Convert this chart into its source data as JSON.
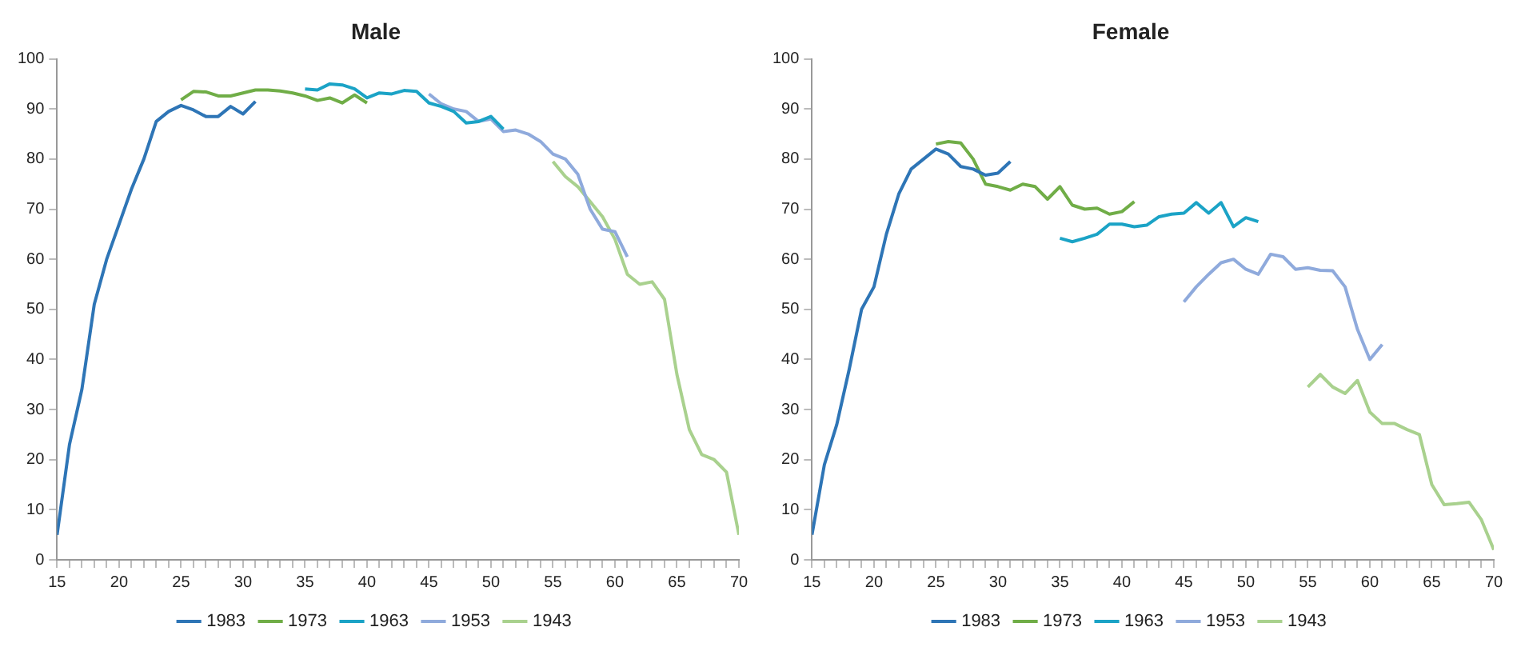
{
  "chart_data": [
    {
      "type": "line",
      "title": "Male",
      "xlim": [
        15,
        70
      ],
      "ylim": [
        0,
        100
      ],
      "xticks": [
        15,
        {
          "value": 16,
          "label": null
        },
        {
          "value": 17,
          "label": null
        },
        {
          "value": 18,
          "label": null
        },
        {
          "value": 19,
          "label": null
        },
        20,
        {
          "value": 21,
          "label": null
        },
        {
          "value": 22,
          "label": null
        },
        {
          "value": 23,
          "label": null
        },
        {
          "value": 24,
          "label": null
        },
        25,
        {
          "value": 26,
          "label": null
        },
        {
          "value": 27,
          "label": null
        },
        {
          "value": 28,
          "label": null
        },
        {
          "value": 29,
          "label": null
        },
        30,
        {
          "value": 31,
          "label": null
        },
        {
          "value": 32,
          "label": null
        },
        {
          "value": 33,
          "label": null
        },
        {
          "value": 34,
          "label": null
        },
        35,
        {
          "value": 36,
          "label": null
        },
        {
          "value": 37,
          "label": null
        },
        {
          "value": 38,
          "label": null
        },
        {
          "value": 39,
          "label": null
        },
        40,
        {
          "value": 41,
          "label": null
        },
        {
          "value": 42,
          "label": null
        },
        {
          "value": 43,
          "label": null
        },
        {
          "value": 44,
          "label": null
        },
        45,
        {
          "value": 46,
          "label": null
        },
        {
          "value": 47,
          "label": null
        },
        {
          "value": 48,
          "label": null
        },
        {
          "value": 49,
          "label": null
        },
        50,
        {
          "value": 51,
          "label": null
        },
        {
          "value": 52,
          "label": null
        },
        {
          "value": 53,
          "label": null
        },
        {
          "value": 54,
          "label": null
        },
        55,
        {
          "value": 56,
          "label": null
        },
        {
          "value": 57,
          "label": null
        },
        {
          "value": 58,
          "label": null
        },
        {
          "value": 59,
          "label": null
        },
        60,
        {
          "value": 61,
          "label": null
        },
        {
          "value": 62,
          "label": null
        },
        {
          "value": 63,
          "label": null
        },
        {
          "value": 64,
          "label": null
        },
        65,
        {
          "value": 66,
          "label": null
        },
        {
          "value": 67,
          "label": null
        },
        {
          "value": 68,
          "label": null
        },
        {
          "value": 69,
          "label": null
        },
        70
      ],
      "yticks": [
        0,
        10,
        20,
        30,
        40,
        50,
        60,
        70,
        80,
        90,
        100
      ],
      "grid": false,
      "legend": "bottom",
      "marker": "none",
      "line_style": "solid",
      "series": [
        {
          "name": "1983",
          "color": "#2e75b6",
          "x": [
            15,
            16,
            17,
            18,
            19,
            20,
            21,
            22,
            23,
            24,
            25,
            26,
            27,
            28,
            29,
            30,
            31
          ],
          "values": [
            5,
            23,
            34,
            51,
            60,
            67,
            74,
            80,
            87.5,
            89.5,
            90.7,
            89.8,
            88.5,
            88.5,
            90.5,
            89,
            91.5
          ]
        },
        {
          "name": "1973",
          "color": "#70ad47",
          "x": [
            25,
            26,
            27,
            28,
            29,
            30,
            31,
            32,
            33,
            34,
            35,
            36,
            37,
            38,
            39,
            40
          ],
          "values": [
            91.8,
            93.5,
            93.4,
            92.6,
            92.6,
            93.2,
            93.8,
            93.8,
            93.6,
            93.2,
            92.6,
            91.7,
            92.2,
            91.2,
            92.8,
            91.2
          ]
        },
        {
          "name": "1963",
          "color": "#1ba3c6",
          "x": [
            35,
            36,
            37,
            38,
            39,
            40,
            41,
            42,
            43,
            44,
            45,
            46,
            47,
            48,
            49,
            50,
            51
          ],
          "values": [
            94,
            93.8,
            95,
            94.8,
            94,
            92.2,
            93.2,
            93,
            93.7,
            93.5,
            91.2,
            90.5,
            89.5,
            87.2,
            87.5,
            88.5,
            86
          ]
        },
        {
          "name": "1953",
          "color": "#8faadc",
          "x": [
            45,
            46,
            47,
            48,
            49,
            50,
            51,
            52,
            53,
            54,
            55,
            56,
            57,
            58,
            59,
            60,
            61
          ],
          "values": [
            93,
            91,
            90,
            89.5,
            87.5,
            88,
            85.5,
            85.8,
            85,
            83.5,
            81,
            80,
            77,
            70,
            66,
            65.5,
            60.5
          ]
        },
        {
          "name": "1943",
          "color": "#a9d18e",
          "x": [
            55,
            56,
            57,
            58,
            59,
            60,
            61,
            62,
            63,
            64,
            65,
            66,
            67,
            68,
            69,
            70
          ],
          "values": [
            79.5,
            76.5,
            74.5,
            71.5,
            68.5,
            64,
            57,
            55,
            55.5,
            52,
            37,
            26,
            21,
            20,
            17.5,
            5
          ]
        }
      ]
    },
    {
      "type": "line",
      "title": "Female",
      "xlim": [
        15,
        70
      ],
      "ylim": [
        0,
        100
      ],
      "xticks": [
        15,
        {
          "value": 16,
          "label": null
        },
        {
          "value": 17,
          "label": null
        },
        {
          "value": 18,
          "label": null
        },
        {
          "value": 19,
          "label": null
        },
        20,
        {
          "value": 21,
          "label": null
        },
        {
          "value": 22,
          "label": null
        },
        {
          "value": 23,
          "label": null
        },
        {
          "value": 24,
          "label": null
        },
        25,
        {
          "value": 26,
          "label": null
        },
        {
          "value": 27,
          "label": null
        },
        {
          "value": 28,
          "label": null
        },
        {
          "value": 29,
          "label": null
        },
        30,
        {
          "value": 31,
          "label": null
        },
        {
          "value": 32,
          "label": null
        },
        {
          "value": 33,
          "label": null
        },
        {
          "value": 34,
          "label": null
        },
        35,
        {
          "value": 36,
          "label": null
        },
        {
          "value": 37,
          "label": null
        },
        {
          "value": 38,
          "label": null
        },
        {
          "value": 39,
          "label": null
        },
        40,
        {
          "value": 41,
          "label": null
        },
        {
          "value": 42,
          "label": null
        },
        {
          "value": 43,
          "label": null
        },
        {
          "value": 44,
          "label": null
        },
        45,
        {
          "value": 46,
          "label": null
        },
        {
          "value": 47,
          "label": null
        },
        {
          "value": 48,
          "label": null
        },
        {
          "value": 49,
          "label": null
        },
        50,
        {
          "value": 51,
          "label": null
        },
        {
          "value": 52,
          "label": null
        },
        {
          "value": 53,
          "label": null
        },
        {
          "value": 54,
          "label": null
        },
        55,
        {
          "value": 56,
          "label": null
        },
        {
          "value": 57,
          "label": null
        },
        {
          "value": 58,
          "label": null
        },
        {
          "value": 59,
          "label": null
        },
        60,
        {
          "value": 61,
          "label": null
        },
        {
          "value": 62,
          "label": null
        },
        {
          "value": 63,
          "label": null
        },
        {
          "value": 64,
          "label": null
        },
        65,
        {
          "value": 66,
          "label": null
        },
        {
          "value": 67,
          "label": null
        },
        {
          "value": 68,
          "label": null
        },
        {
          "value": 69,
          "label": null
        },
        70
      ],
      "yticks": [
        0,
        10,
        20,
        30,
        40,
        50,
        60,
        70,
        80,
        90,
        100
      ],
      "grid": false,
      "legend": "bottom",
      "marker": "none",
      "line_style": "solid",
      "series": [
        {
          "name": "1983",
          "color": "#2e75b6",
          "x": [
            15,
            16,
            17,
            18,
            19,
            20,
            21,
            22,
            23,
            24,
            25,
            26,
            27,
            28,
            29,
            30,
            31
          ],
          "values": [
            5,
            19,
            27,
            38,
            50,
            54.5,
            65,
            73,
            78,
            80,
            82,
            81,
            78.5,
            78,
            76.8,
            77.2,
            79.5
          ]
        },
        {
          "name": "1973",
          "color": "#70ad47",
          "x": [
            25,
            26,
            27,
            28,
            29,
            30,
            31,
            32,
            33,
            34,
            35,
            36,
            37,
            38,
            39,
            40,
            41
          ],
          "values": [
            83,
            83.5,
            83.2,
            80,
            75,
            74.5,
            73.8,
            75,
            74.5,
            72,
            74.5,
            70.8,
            70,
            70.2,
            69,
            69.5,
            71.5
          ]
        },
        {
          "name": "1963",
          "color": "#1ba3c6",
          "x": [
            35,
            36,
            37,
            38,
            39,
            40,
            41,
            42,
            43,
            44,
            45,
            46,
            47,
            48,
            49,
            50,
            51
          ],
          "values": [
            64.2,
            63.5,
            64.2,
            65,
            67,
            67,
            66.5,
            66.8,
            68.5,
            69,
            69.2,
            71.3,
            69.2,
            71.3,
            66.5,
            68.3,
            67.5
          ]
        },
        {
          "name": "1953",
          "color": "#8faadc",
          "x": [
            45,
            46,
            47,
            48,
            49,
            50,
            51,
            52,
            53,
            54,
            55,
            56,
            57,
            58,
            59,
            60,
            61
          ],
          "values": [
            51.5,
            54.5,
            57,
            59.3,
            60,
            58,
            57,
            61,
            60.5,
            58,
            58.3,
            57.8,
            57.7,
            54.5,
            46,
            40,
            43
          ]
        },
        {
          "name": "1943",
          "color": "#a9d18e",
          "x": [
            55,
            56,
            57,
            58,
            59,
            60,
            61,
            62,
            63,
            64,
            65,
            66,
            67,
            68,
            69,
            70
          ],
          "values": [
            34.5,
            37,
            34.5,
            33.2,
            35.8,
            29.5,
            27.2,
            27.2,
            26,
            25,
            15,
            11,
            11.2,
            11.5,
            8,
            2
          ]
        }
      ]
    }
  ]
}
